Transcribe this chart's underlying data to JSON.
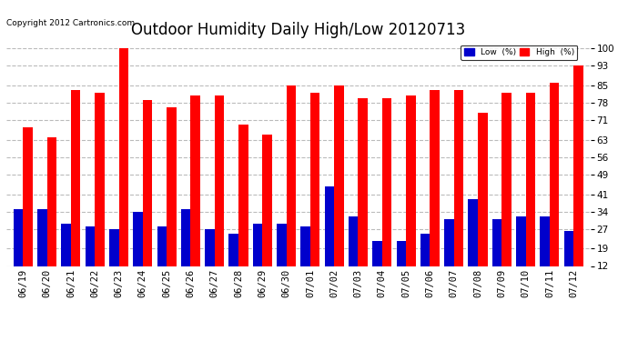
{
  "title": "Outdoor Humidity Daily High/Low 20120713",
  "copyright": "Copyright 2012 Cartronics.com",
  "legend_low": "Low  (%)",
  "legend_high": "High  (%)",
  "categories": [
    "06/19",
    "06/20",
    "06/21",
    "06/22",
    "06/23",
    "06/24",
    "06/25",
    "06/26",
    "06/27",
    "06/28",
    "06/29",
    "06/30",
    "07/01",
    "07/02",
    "07/03",
    "07/04",
    "07/05",
    "07/06",
    "07/07",
    "07/08",
    "07/09",
    "07/10",
    "07/11",
    "07/12"
  ],
  "high_values": [
    68,
    64,
    83,
    82,
    100,
    79,
    76,
    81,
    81,
    69,
    65,
    85,
    82,
    85,
    80,
    80,
    81,
    83,
    83,
    74,
    82,
    82,
    86,
    93
  ],
  "low_values": [
    35,
    35,
    29,
    28,
    27,
    34,
    28,
    35,
    27,
    25,
    29,
    29,
    28,
    44,
    32,
    22,
    22,
    25,
    31,
    39,
    31,
    32,
    32,
    26
  ],
  "bar_width": 0.4,
  "high_color": "#ff0000",
  "low_color": "#0000cc",
  "background_color": "#ffffff",
  "plot_bg_color": "#ffffff",
  "grid_color": "#bbbbbb",
  "ytick_labels": [
    "12",
    "19",
    "27",
    "34",
    "41",
    "49",
    "56",
    "63",
    "71",
    "78",
    "85",
    "93",
    "100"
  ],
  "yticks": [
    12,
    19,
    27,
    34,
    41,
    49,
    56,
    63,
    71,
    78,
    85,
    93,
    100
  ],
  "ylim": [
    12,
    103
  ],
  "title_fontsize": 12,
  "tick_fontsize": 7.5,
  "copyright_fontsize": 6.5
}
